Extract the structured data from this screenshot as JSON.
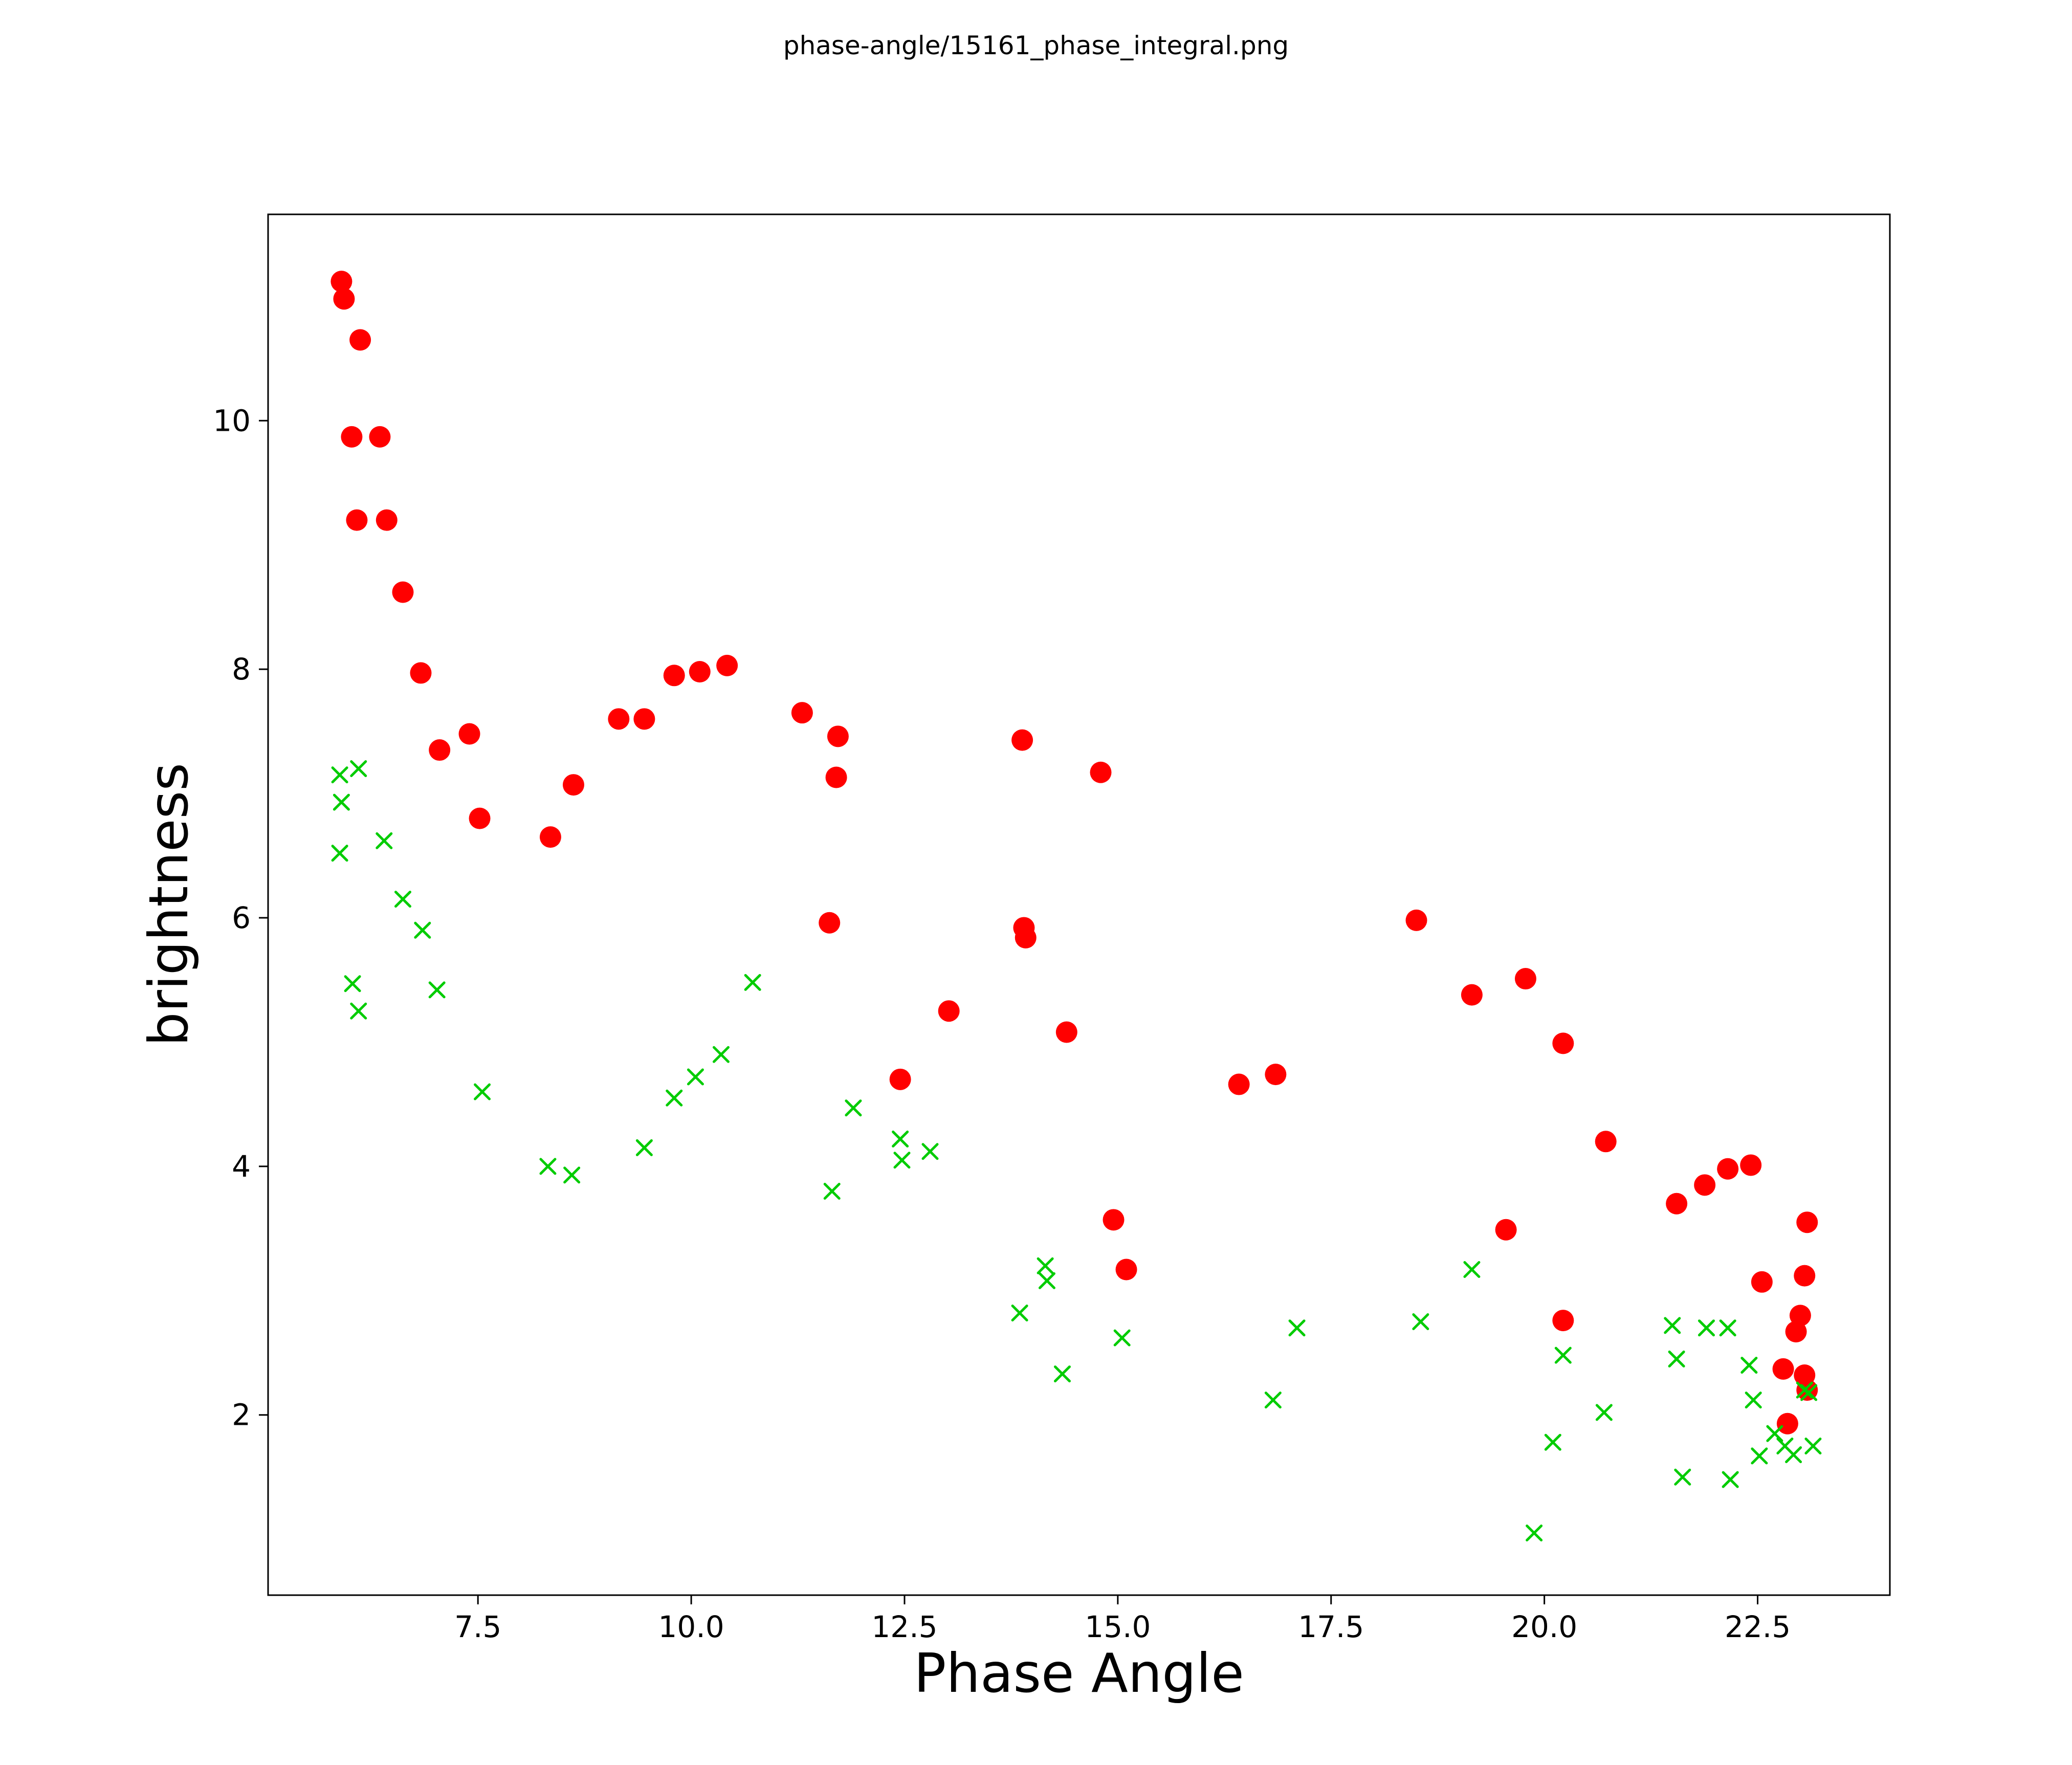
{
  "title": "phase-angle/15161_phase_integral.png",
  "chart_data": {
    "type": "scatter",
    "title": "phase-angle/15161_phase_integral.png",
    "xlabel": "Phase Angle",
    "ylabel": "brightness",
    "xlim": [
      5.04,
      24.05
    ],
    "ylim": [
      0.55,
      11.66
    ],
    "grid": false,
    "legend": "none",
    "xticks": [
      7.5,
      10.0,
      12.5,
      15.0,
      17.5,
      20.0,
      22.5
    ],
    "xtick_labels": [
      "7.5",
      "10.0",
      "12.5",
      "15.0",
      "17.5",
      "20.0",
      "22.5"
    ],
    "yticks": [
      2,
      4,
      6,
      8,
      10
    ],
    "ytick_labels": [
      "2",
      "4",
      "6",
      "8",
      "10"
    ],
    "series": [
      {
        "name": "red-circles",
        "marker": "circle",
        "color": "#ff0000",
        "points": [
          [
            5.9,
            11.12
          ],
          [
            5.93,
            10.98
          ],
          [
            6.12,
            10.65
          ],
          [
            6.02,
            9.87
          ],
          [
            6.35,
            9.87
          ],
          [
            6.08,
            9.2
          ],
          [
            6.43,
            9.2
          ],
          [
            6.62,
            8.62
          ],
          [
            6.83,
            7.97
          ],
          [
            7.05,
            7.35
          ],
          [
            7.4,
            7.48
          ],
          [
            7.52,
            6.8
          ],
          [
            8.35,
            6.65
          ],
          [
            8.62,
            7.07
          ],
          [
            9.15,
            7.6
          ],
          [
            9.45,
            7.6
          ],
          [
            9.8,
            7.95
          ],
          [
            10.1,
            7.98
          ],
          [
            10.42,
            8.03
          ],
          [
            11.3,
            7.65
          ],
          [
            11.72,
            7.46
          ],
          [
            11.7,
            7.13
          ],
          [
            11.62,
            5.96
          ],
          [
            12.45,
            4.7
          ],
          [
            13.02,
            5.25
          ],
          [
            13.88,
            7.43
          ],
          [
            13.9,
            5.92
          ],
          [
            13.92,
            5.84
          ],
          [
            14.4,
            5.08
          ],
          [
            14.8,
            7.17
          ],
          [
            14.95,
            3.57
          ],
          [
            15.1,
            3.17
          ],
          [
            16.42,
            4.66
          ],
          [
            16.85,
            4.74
          ],
          [
            18.5,
            5.98
          ],
          [
            19.15,
            5.38
          ],
          [
            19.55,
            3.49
          ],
          [
            19.78,
            5.51
          ],
          [
            20.22,
            4.99
          ],
          [
            20.22,
            2.76
          ],
          [
            20.72,
            4.2
          ],
          [
            21.55,
            3.7
          ],
          [
            21.88,
            3.85
          ],
          [
            22.15,
            3.98
          ],
          [
            22.42,
            4.01
          ],
          [
            22.55,
            3.07
          ],
          [
            22.8,
            2.37
          ],
          [
            22.85,
            1.93
          ],
          [
            22.95,
            2.67
          ],
          [
            23.0,
            2.8
          ],
          [
            23.05,
            3.12
          ],
          [
            23.08,
            3.55
          ],
          [
            23.05,
            2.32
          ],
          [
            23.08,
            2.2
          ]
        ]
      },
      {
        "name": "green-crosses",
        "marker": "x",
        "color": "#00cc00",
        "points": [
          [
            5.88,
            7.15
          ],
          [
            6.1,
            7.2
          ],
          [
            5.9,
            6.93
          ],
          [
            5.88,
            6.52
          ],
          [
            6.03,
            5.47
          ],
          [
            6.1,
            5.25
          ],
          [
            6.4,
            6.62
          ],
          [
            6.62,
            6.15
          ],
          [
            6.85,
            5.9
          ],
          [
            7.02,
            5.42
          ],
          [
            7.55,
            4.6
          ],
          [
            8.32,
            4.0
          ],
          [
            8.6,
            3.93
          ],
          [
            9.45,
            4.15
          ],
          [
            9.8,
            4.55
          ],
          [
            10.05,
            4.72
          ],
          [
            10.35,
            4.9
          ],
          [
            10.72,
            5.48
          ],
          [
            11.65,
            3.8
          ],
          [
            11.9,
            4.47
          ],
          [
            12.45,
            4.22
          ],
          [
            12.47,
            4.05
          ],
          [
            12.8,
            4.12
          ],
          [
            13.85,
            2.82
          ],
          [
            14.15,
            3.2
          ],
          [
            14.17,
            3.08
          ],
          [
            14.35,
            2.33
          ],
          [
            15.05,
            2.62
          ],
          [
            16.82,
            2.12
          ],
          [
            17.1,
            2.7
          ],
          [
            18.55,
            2.75
          ],
          [
            19.15,
            3.17
          ],
          [
            19.88,
            1.05
          ],
          [
            20.1,
            1.78
          ],
          [
            20.22,
            2.48
          ],
          [
            20.7,
            2.02
          ],
          [
            21.5,
            2.72
          ],
          [
            21.55,
            2.45
          ],
          [
            21.62,
            1.5
          ],
          [
            21.9,
            2.7
          ],
          [
            22.15,
            2.7
          ],
          [
            22.18,
            1.48
          ],
          [
            22.4,
            2.4
          ],
          [
            22.45,
            2.12
          ],
          [
            22.52,
            1.67
          ],
          [
            22.7,
            1.85
          ],
          [
            22.82,
            1.75
          ],
          [
            22.92,
            1.68
          ],
          [
            23.05,
            2.2
          ],
          [
            23.1,
            2.18
          ],
          [
            23.15,
            1.75
          ]
        ]
      }
    ]
  }
}
